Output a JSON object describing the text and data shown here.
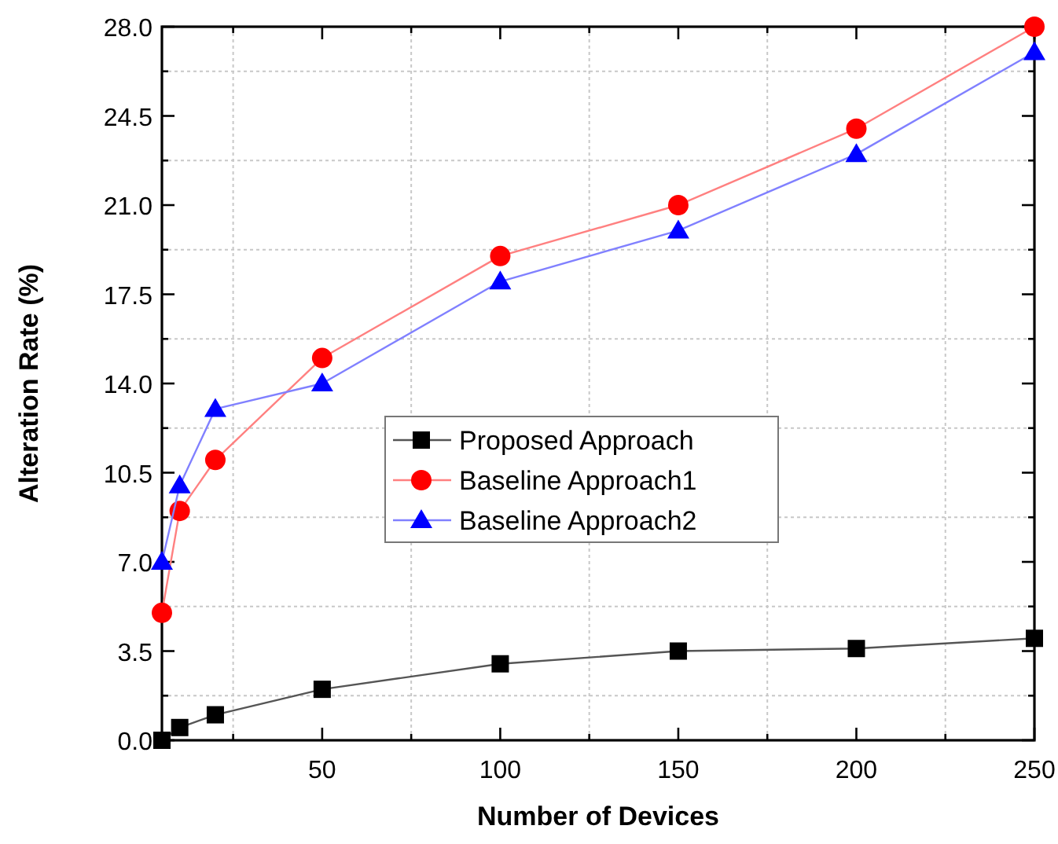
{
  "chart_data": {
    "type": "line",
    "xlabel": "Number of Devices",
    "ylabel": "Alteration Rate (%)",
    "x": [
      5,
      10,
      20,
      50,
      100,
      150,
      200,
      250
    ],
    "xlim": [
      5,
      250
    ],
    "xticks": [
      50,
      100,
      150,
      200,
      250
    ],
    "ylim": [
      0,
      28
    ],
    "yticks": [
      {
        "value": 0,
        "label": "0.0"
      },
      {
        "value": 3.5,
        "label": "3.5"
      },
      {
        "value": 7,
        "label": "7.0"
      },
      {
        "value": 10.5,
        "label": "10.5"
      },
      {
        "value": 14,
        "label": "14.0"
      },
      {
        "value": 17.5,
        "label": "17.5"
      },
      {
        "value": 21,
        "label": "21.0"
      },
      {
        "value": 24.5,
        "label": "24.5"
      },
      {
        "value": 28,
        "label": "28.0"
      }
    ],
    "grid": true,
    "legend": "center",
    "series": [
      {
        "name": "Proposed Approach",
        "color": "#000000",
        "marker": "square",
        "values": [
          0,
          0.5,
          1,
          2,
          3,
          3.5,
          3.6,
          4
        ]
      },
      {
        "name": "Baseline Approach1",
        "color": "#ff0000",
        "marker": "circle",
        "values": [
          5,
          9,
          11,
          15,
          19,
          21,
          24,
          28
        ]
      },
      {
        "name": "Baseline Approach2",
        "color": "#0000ff",
        "marker": "triangle",
        "values": [
          7,
          10,
          13,
          14,
          18,
          20,
          23,
          27
        ]
      }
    ]
  }
}
